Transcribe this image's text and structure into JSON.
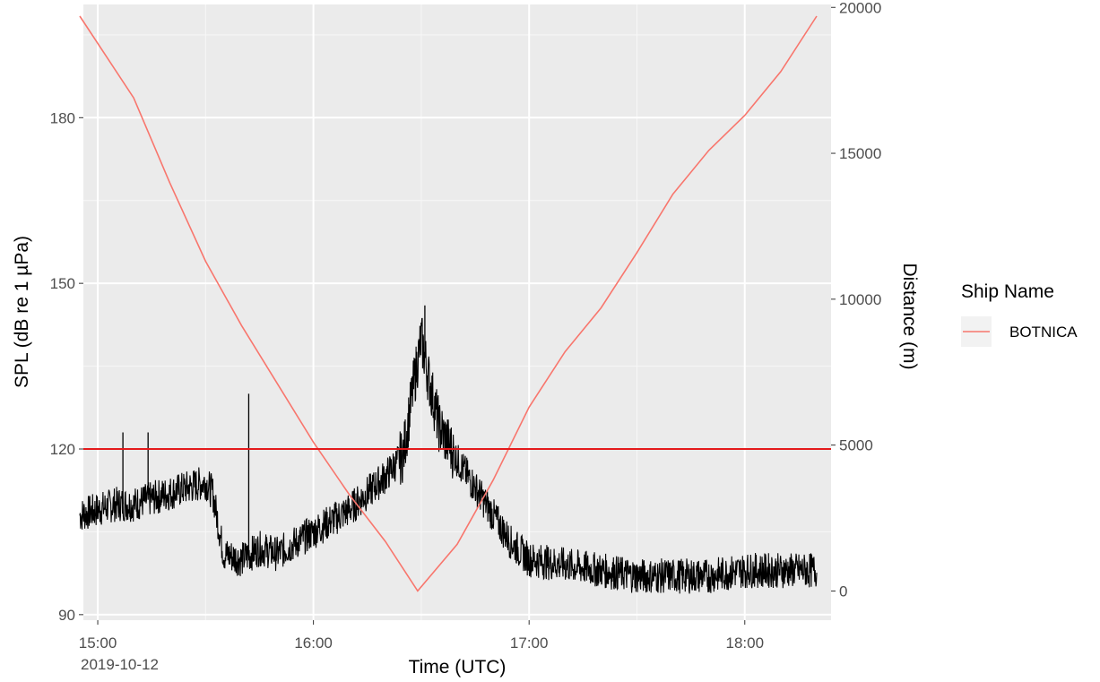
{
  "chart_data": {
    "type": "line",
    "title": "",
    "xlabel": "Time (UTC)",
    "ylabel": "SPL (dB re 1 µPa)",
    "y2label": "Distance (m)",
    "x_date_label": "2019-10-12",
    "x_ticks": [
      "15:00",
      "16:00",
      "17:00",
      "18:00"
    ],
    "xlim": [
      "14:56",
      "18:24"
    ],
    "ylim": [
      89,
      200.5
    ],
    "y_ticks": [
      90,
      120,
      150,
      180
    ],
    "y2lim": [
      -1000,
      20100
    ],
    "y2_ticks": [
      0,
      5000,
      10000,
      15000,
      20000
    ],
    "grid": true,
    "threshold": {
      "value": 120,
      "color": "#e41a1c"
    },
    "legend": {
      "title": "Ship Name",
      "position": "right",
      "entries": [
        {
          "label": "BOTNICA",
          "color": "#f8766d"
        }
      ]
    },
    "series": [
      {
        "name": "BOTNICA",
        "axis": "right",
        "color": "#f8766d",
        "x": [
          "14:55",
          "15:10",
          "15:20",
          "15:30",
          "15:40",
          "15:50",
          "16:00",
          "16:10",
          "16:20",
          "16:29",
          "16:40",
          "16:50",
          "17:00",
          "17:10",
          "17:20",
          "17:30",
          "17:40",
          "17:50",
          "18:00",
          "18:10",
          "18:20"
        ],
        "values": [
          19700,
          16900,
          14000,
          11300,
          9100,
          7100,
          5100,
          3300,
          1700,
          0,
          1600,
          3800,
          6300,
          8200,
          9700,
          11600,
          13600,
          15100,
          16300,
          17800,
          19700
        ]
      },
      {
        "name": "SPL",
        "axis": "left",
        "color": "#000000",
        "x": [
          "14:55",
          "15:00",
          "15:05",
          "15:10",
          "15:15",
          "15:20",
          "15:25",
          "15:30",
          "15:32",
          "15:35",
          "15:40",
          "15:45",
          "15:50",
          "15:55",
          "16:00",
          "16:05",
          "16:10",
          "16:15",
          "16:20",
          "16:25",
          "16:28",
          "16:30",
          "16:32",
          "16:35",
          "16:40",
          "16:45",
          "16:50",
          "16:55",
          "17:00",
          "17:10",
          "17:20",
          "17:30",
          "17:40",
          "17:50",
          "18:00",
          "18:10",
          "18:20"
        ],
        "values": [
          108,
          109,
          110,
          110,
          111,
          112,
          113,
          114,
          112,
          101,
          100,
          102,
          101,
          103,
          105,
          107,
          109,
          112,
          115,
          119,
          132,
          140,
          133,
          124,
          118,
          113,
          108,
          103,
          100,
          99,
          98,
          97,
          97,
          97,
          98,
          98,
          98
        ]
      }
    ],
    "spikes": [
      {
        "x": "15:07",
        "value": 123
      },
      {
        "x": "15:14",
        "value": 123
      },
      {
        "x": "15:42",
        "value": 130
      },
      {
        "x": "16:31",
        "value": 146
      }
    ]
  }
}
